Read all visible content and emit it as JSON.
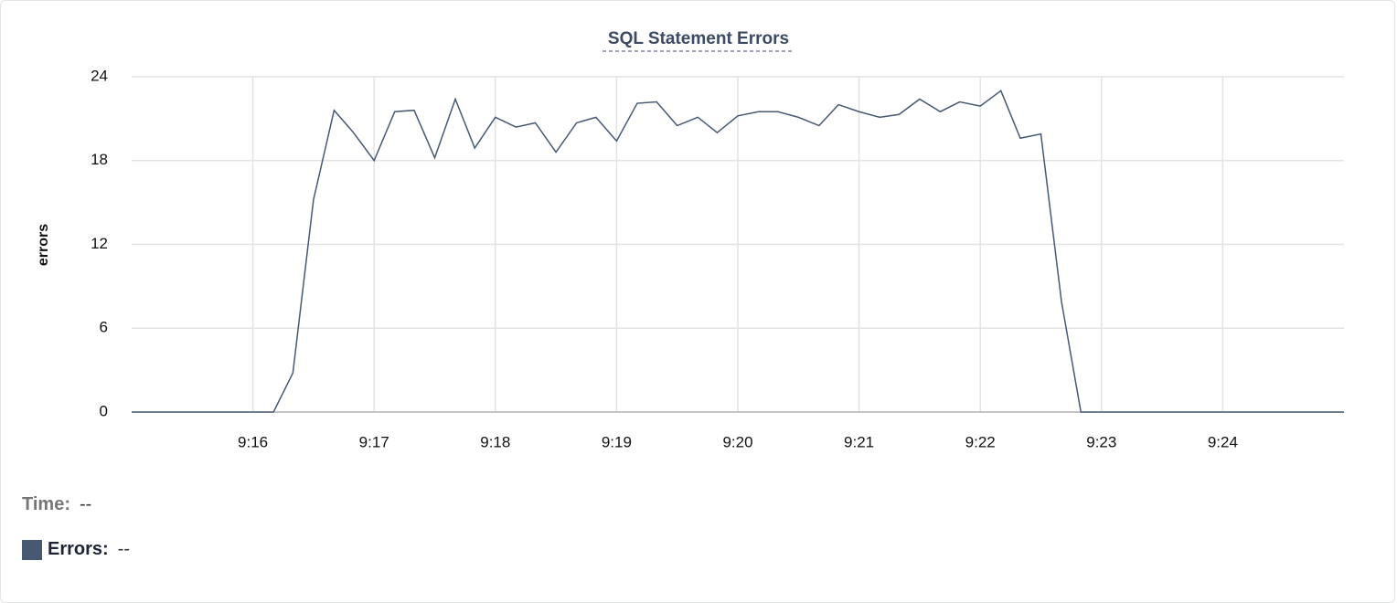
{
  "chart_data": {
    "type": "line",
    "title": "SQL Statement Errors",
    "y_label": "errors",
    "x": [
      15,
      15.17,
      15.33,
      15.5,
      15.67,
      15.83,
      16,
      16.17,
      16.33,
      16.5,
      16.67,
      16.83,
      17,
      17.17,
      17.33,
      17.5,
      17.67,
      17.83,
      18,
      18.17,
      18.33,
      18.5,
      18.67,
      18.83,
      19,
      19.17,
      19.33,
      19.5,
      19.67,
      19.83,
      20,
      20.17,
      20.33,
      20.5,
      20.67,
      20.83,
      21,
      21.17,
      21.33,
      21.5,
      21.67,
      21.83,
      22,
      22.17,
      22.33,
      22.5,
      22.67,
      22.83,
      23,
      23.17,
      23.33,
      23.5,
      23.67,
      23.83,
      24,
      24.17,
      24.33,
      24.5,
      24.67,
      24.83,
      25
    ],
    "series": [
      {
        "name": "Errors:",
        "color": "#475872",
        "values": [
          0,
          0,
          0,
          0,
          0,
          0,
          0,
          0,
          2.8,
          15.2,
          21.6,
          20.0,
          18.0,
          21.5,
          21.6,
          18.2,
          22.4,
          18.9,
          21.1,
          20.4,
          20.7,
          18.6,
          20.7,
          21.1,
          19.4,
          22.1,
          22.2,
          20.5,
          21.1,
          20.0,
          21.2,
          21.5,
          21.5,
          21.1,
          20.5,
          22.0,
          21.5,
          21.1,
          21.3,
          22.4,
          21.5,
          22.2,
          21.9,
          23.0,
          19.6,
          19.9,
          7.9,
          0,
          0,
          0,
          0,
          0,
          0,
          0,
          0,
          0,
          0,
          0,
          0,
          0,
          0
        ]
      }
    ],
    "xlim": [
      15,
      25
    ],
    "xticks": [
      {
        "value": 16,
        "label": "9:16"
      },
      {
        "value": 17,
        "label": "9:17"
      },
      {
        "value": 18,
        "label": "9:18"
      },
      {
        "value": 19,
        "label": "9:19"
      },
      {
        "value": 20,
        "label": "9:20"
      },
      {
        "value": 21,
        "label": "9:21"
      },
      {
        "value": 22,
        "label": "9:22"
      },
      {
        "value": 23,
        "label": "9:23"
      },
      {
        "value": 24,
        "label": "9:24"
      }
    ],
    "ylim": [
      0,
      24
    ],
    "yticks": [
      0,
      6,
      12,
      18,
      24
    ],
    "grid": true,
    "readout": {
      "time_label": "Time:",
      "time_value": "--",
      "series_value": "--"
    }
  }
}
